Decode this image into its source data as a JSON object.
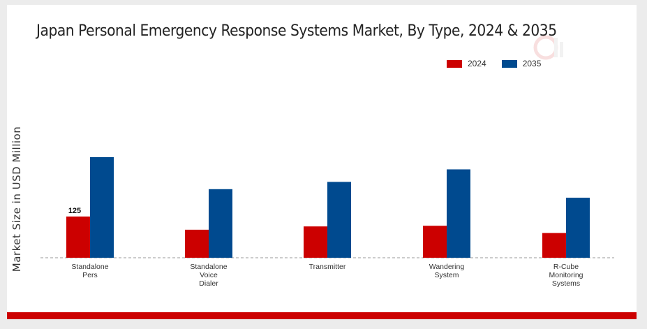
{
  "chart_data": {
    "type": "bar",
    "title": "Japan Personal Emergency Response Systems Market, By Type, 2024 & 2035",
    "xlabel": "",
    "ylabel": "Market Size in USD Million",
    "categories": [
      [
        "Standalone",
        "Pers"
      ],
      [
        "Standalone",
        "Voice",
        "Dialer"
      ],
      [
        "Transmitter"
      ],
      [
        "Wandering",
        "System"
      ],
      [
        "R-Cube",
        "Monitoring",
        "Systems"
      ]
    ],
    "series": [
      {
        "name": "2024",
        "color": "#cc0000",
        "values": [
          125,
          85,
          95,
          97,
          75
        ]
      },
      {
        "name": "2035",
        "color": "#004a8f",
        "values": [
          305,
          208,
          230,
          268,
          182
        ]
      }
    ],
    "data_labels": [
      {
        "series": 0,
        "index": 0,
        "text": "125"
      }
    ],
    "ylim": [
      0,
      330
    ],
    "grid": false,
    "legend_position": "top-right"
  },
  "colors": {
    "accent": "#cc0000",
    "series_2024": "#cc0000",
    "series_2035": "#004a8f",
    "baseline": "#999999"
  }
}
